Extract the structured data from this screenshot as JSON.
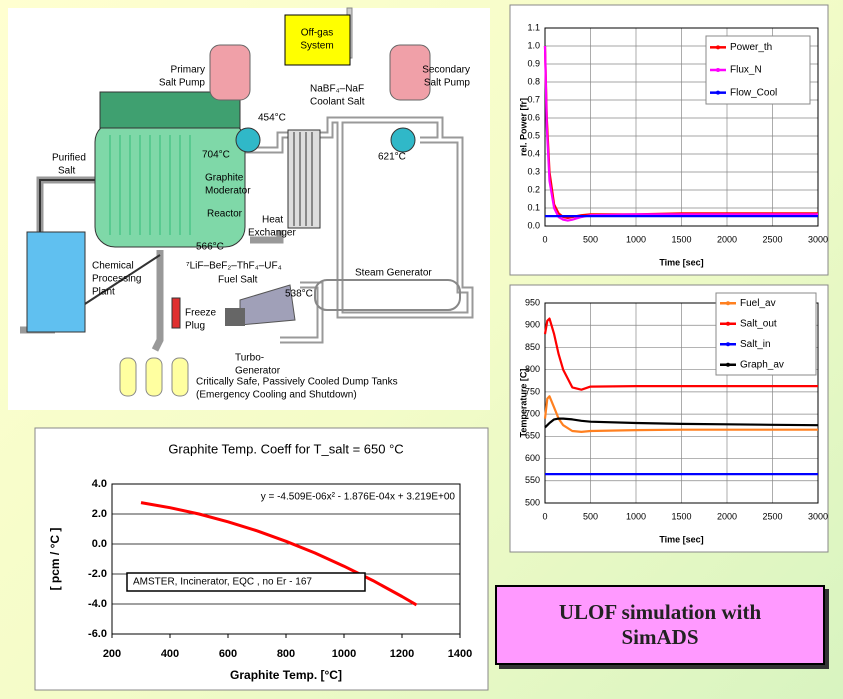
{
  "diagram": {
    "off_gas": [
      "Off-gas",
      "System"
    ],
    "primary_pump": [
      "Primary",
      "Salt Pump"
    ],
    "secondary_pump": [
      "Secondary",
      "Salt Pump"
    ],
    "coolant_salt": [
      "NaBF₄–NaF",
      "Coolant Salt"
    ],
    "temp_454": "454°C",
    "temp_704": "704°C",
    "temp_621": "621°C",
    "temp_566": "566°C",
    "temp_538": "538°C",
    "purified_salt": [
      "Purified",
      "Salt"
    ],
    "moderator": [
      "Graphite",
      "Moderator"
    ],
    "reactor": "Reactor",
    "heat_exchanger": [
      "Heat",
      "Exchanger"
    ],
    "chemical_plant": [
      "Chemical",
      "Processing",
      "Plant"
    ],
    "fuel_salt": [
      "⁷LiF–BeF₂–ThF₄–UF₄",
      "Fuel Salt"
    ],
    "steam_generator": "Steam Generator",
    "freeze_plug": [
      "Freeze",
      "Plug"
    ],
    "turbo_generator": [
      "Turbo-",
      "Generator"
    ],
    "dump_tanks": [
      "Critically Safe, Passively Cooled Dump Tanks",
      "(Emergency Cooling and Shutdown)"
    ]
  },
  "chart_data": [
    {
      "type": "line",
      "xlabel": "Time [sec]",
      "ylabel": "rel. Power [fr]",
      "x": [
        0,
        20,
        50,
        100,
        150,
        200,
        250,
        300,
        400,
        500,
        1000,
        1500,
        2000,
        2500,
        3000
      ],
      "series": [
        {
          "name": "Power_th",
          "color": "#ff0000",
          "values": [
            1.0,
            0.6,
            0.3,
            0.12,
            0.07,
            0.05,
            0.045,
            0.05,
            0.06,
            0.065,
            0.065,
            0.07,
            0.07,
            0.07,
            0.07
          ]
        },
        {
          "name": "Flux_N",
          "color": "#ff00ff",
          "values": [
            1.0,
            0.55,
            0.25,
            0.1,
            0.05,
            0.035,
            0.03,
            0.035,
            0.05,
            0.06,
            0.065,
            0.065,
            0.065,
            0.065,
            0.065
          ]
        },
        {
          "name": "Flow_Cool",
          "color": "#0000ff",
          "values": [
            0.055,
            0.055,
            0.055,
            0.055,
            0.055,
            0.055,
            0.055,
            0.055,
            0.055,
            0.055,
            0.055,
            0.055,
            0.055,
            0.055,
            0.055
          ]
        }
      ],
      "xlim": [
        0,
        3000
      ],
      "xticks": [
        0,
        500,
        1000,
        1500,
        2000,
        2500,
        3000
      ],
      "ylim": [
        0,
        1.1
      ],
      "yticks": [
        {
          "value": 0,
          "label": "0.0"
        },
        0.1,
        0.2,
        0.3,
        0.4,
        0.5,
        0.6,
        0.7,
        0.8,
        0.9,
        {
          "value": 1,
          "label": "1.0"
        },
        1.1
      ],
      "grid": true,
      "legend": "upper right"
    },
    {
      "type": "line",
      "xlabel": "Time [sec]",
      "ylabel": "Temperature [C]",
      "x": [
        0,
        25,
        50,
        100,
        150,
        200,
        300,
        400,
        500,
        1000,
        1500,
        2000,
        2500,
        3000
      ],
      "series": [
        {
          "name": "Fuel_av",
          "color": "#ff8020",
          "values": [
            690,
            735,
            740,
            715,
            690,
            675,
            662,
            660,
            662,
            664,
            665,
            665,
            665,
            665
          ]
        },
        {
          "name": "Salt_out",
          "color": "#ff0000",
          "values": [
            880,
            910,
            915,
            880,
            835,
            800,
            760,
            755,
            762,
            763,
            763,
            763,
            763,
            763
          ]
        },
        {
          "name": "Salt_in",
          "color": "#0000ff",
          "values": [
            565,
            565,
            565,
            565,
            565,
            565,
            565,
            565,
            565,
            565,
            565,
            565,
            565,
            565
          ]
        },
        {
          "name": "Graph_av",
          "color": "#000000",
          "values": [
            670,
            675,
            680,
            688,
            690,
            690,
            688,
            685,
            683,
            680,
            678,
            677,
            676,
            675
          ]
        }
      ],
      "xlim": [
        0,
        3000
      ],
      "xticks": [
        0,
        500,
        1000,
        1500,
        2000,
        2500,
        3000
      ],
      "ylim": [
        500,
        950
      ],
      "yticks": [
        500,
        550,
        600,
        650,
        700,
        750,
        800,
        850,
        900,
        950
      ],
      "grid": true,
      "legend": "upper right"
    },
    {
      "type": "line",
      "title": "Graphite Temp. Coeff for T_salt = 650 °C",
      "xlabel": "Graphite Temp. [°C]",
      "ylabel": "[ pcm / °C ]",
      "x": [
        300,
        400,
        500,
        600,
        700,
        800,
        900,
        1000,
        1100,
        1200,
        1250
      ],
      "series": [
        {
          "color": "#ff0000",
          "values": [
            2.76,
            2.42,
            2.0,
            1.48,
            0.88,
            0.18,
            -0.6,
            -1.48,
            -2.44,
            -3.5,
            -4.06
          ]
        }
      ],
      "xlim": [
        200,
        1400
      ],
      "xticks": [
        200,
        400,
        600,
        800,
        1000,
        1200,
        1400
      ],
      "ylim": [
        -6,
        4
      ],
      "yticks": [
        {
          "value": -6,
          "label": "-6.0"
        },
        {
          "value": -4,
          "label": "-4.0"
        },
        {
          "value": -2,
          "label": "-2.0"
        },
        {
          "value": 0,
          "label": "0.0"
        },
        {
          "value": 2,
          "label": "2.0"
        },
        {
          "value": 4,
          "label": "4.0"
        }
      ],
      "grid": true,
      "annotations": [
        "y = -4.509E-06x² - 1.876E-04x + 3.219E+00",
        "AMSTER, Incinerator, EQC , no Er - 167"
      ]
    }
  ],
  "caption": [
    "ULOF simulation with",
    "SimADS"
  ]
}
